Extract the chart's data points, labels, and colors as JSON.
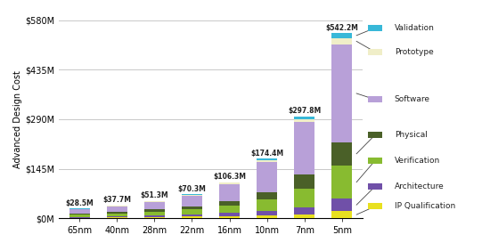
{
  "categories": [
    "65nm",
    "40nm",
    "28nm",
    "22nm",
    "16nm",
    "10nm",
    "7nm",
    "5nm"
  ],
  "totals": [
    "$28.5M",
    "$37.7M",
    "$51.3M",
    "$70.3M",
    "$106.3M",
    "$174.4M",
    "$297.8M",
    "$542.2M"
  ],
  "segments": {
    "IP Qualification": [
      2.0,
      2.5,
      3.5,
      5.0,
      6.5,
      8.0,
      12.0,
      22.0
    ],
    "Architecture": [
      2.5,
      3.5,
      5.0,
      7.0,
      10.0,
      14.0,
      20.0,
      35.0
    ],
    "Verification": [
      6.0,
      8.0,
      11.0,
      14.0,
      20.0,
      34.0,
      55.0,
      98.0
    ],
    "Physical": [
      3.5,
      5.0,
      7.5,
      10.0,
      14.0,
      20.0,
      42.0,
      68.0
    ],
    "Software": [
      12.0,
      16.0,
      21.5,
      30.5,
      50.0,
      88.0,
      152.0,
      285.0
    ],
    "Prototype": [
      1.5,
      1.7,
      1.8,
      2.3,
      3.5,
      6.0,
      10.0,
      20.0
    ],
    "Validation": [
      1.0,
      1.0,
      1.0,
      1.5,
      2.3,
      4.4,
      6.8,
      14.2
    ]
  },
  "colors": {
    "IP Qualification": "#e8e020",
    "Architecture": "#7050a8",
    "Verification": "#88bb30",
    "Physical": "#4a6028",
    "Software": "#b8a0d8",
    "Prototype": "#f0eec8",
    "Validation": "#38b8d8"
  },
  "legend_items": [
    "Validation",
    "Prototype",
    "Software",
    "Physical",
    "Verification",
    "Architecture",
    "IP Qualification"
  ],
  "legend_y_fractions": [
    0.96,
    0.84,
    0.6,
    0.42,
    0.29,
    0.16,
    0.06
  ],
  "ylabel": "Advanced Design Cost",
  "ylim": [
    0,
    580
  ],
  "yticks": [
    0,
    145,
    290,
    435,
    580
  ],
  "ytick_labels": [
    "$0M",
    "$145M",
    "$290M",
    "$435M",
    "$580M"
  ],
  "bar_width": 0.55,
  "bg_color": "#ffffff",
  "grid_color": "#c8c8c8"
}
